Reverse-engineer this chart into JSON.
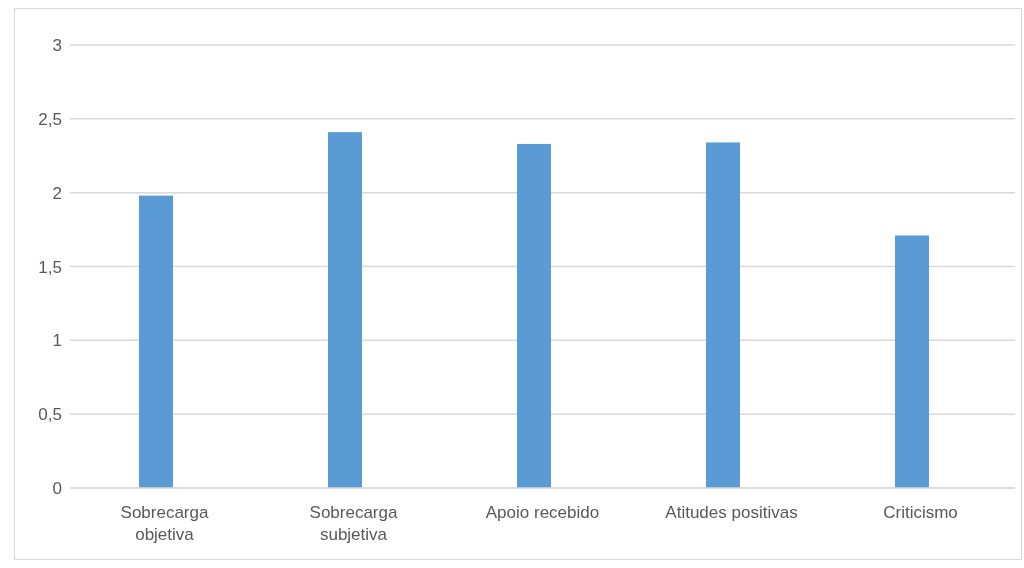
{
  "chart_data": {
    "type": "bar",
    "categories": [
      "Sobrecarga objetiva",
      "Sobrecarga subjetiva",
      "Apoio recebido",
      "Atitudes positivas",
      "Criticismo"
    ],
    "values": [
      1.98,
      2.41,
      2.33,
      2.34,
      1.71
    ],
    "color": "#5b9bd5",
    "ylim": [
      0,
      3
    ],
    "yticks": [
      0,
      {
        "value": 0.5,
        "label": "0,5"
      },
      1,
      {
        "value": 1.5,
        "label": "1,5"
      },
      2,
      {
        "value": 2.5,
        "label": "2,5"
      },
      3
    ],
    "grid": "y"
  }
}
